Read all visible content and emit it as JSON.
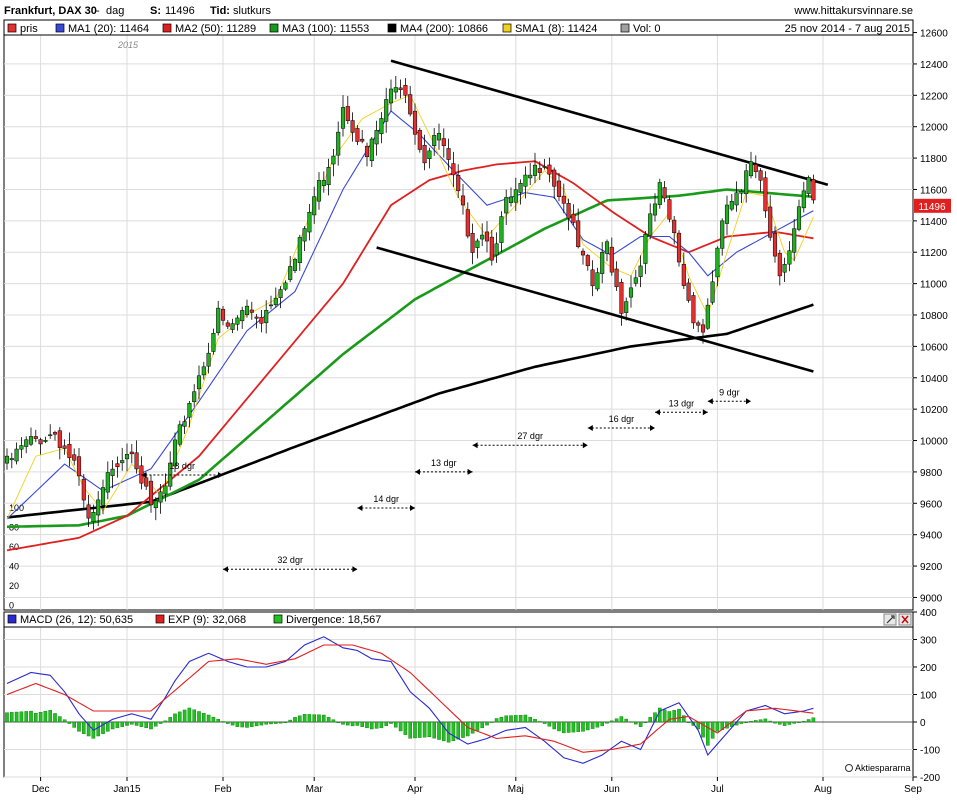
{
  "header": {
    "title": "Frankfurt, DAX 30",
    "sep": "-",
    "interval": "dag",
    "last_label": "S:",
    "last_value": "11496",
    "type_label": "Tid:",
    "type_value": "slutkurs",
    "site": "www.hittakursvinnare.se",
    "date_range": "25 nov 2014 - 7 aug 2015",
    "year_label": "2015"
  },
  "legend": [
    {
      "label": "pris",
      "color": "#e53030"
    },
    {
      "label": "MA1 (20): 11464",
      "color": "#3a48d6"
    },
    {
      "label": "MA2 (50): 11289",
      "color": "#e02020"
    },
    {
      "label": "MA3 (100): 11553",
      "color": "#1a9a1a"
    },
    {
      "label": "MA4 (200): 10866",
      "color": "#000000"
    },
    {
      "label": "SMA1 (8): 11424",
      "color": "#f0d020"
    },
    {
      "label": "Vol: 0",
      "color": "#a0a0a0"
    }
  ],
  "macd_legend": [
    {
      "label": "MACD (26, 12): 50,635",
      "color": "#2a2ad0"
    },
    {
      "label": "EXP (9): 32,068",
      "color": "#e02020"
    },
    {
      "label": "Divergence: 18,567",
      "color": "#22c022"
    }
  ],
  "price_marker": "11496",
  "watermark": "Aktiespararna",
  "colors": {
    "up": "#22b022",
    "down": "#e03030",
    "ma20": "#3a48d6",
    "ma50": "#e02020",
    "ma100": "#1a9a1a",
    "ma200": "#000000",
    "sma8": "#f0d020",
    "macd": "#2a2ad0",
    "exp": "#e02020",
    "div": "#22c022"
  },
  "chart_data": [
    {
      "type": "candlestick",
      "title": "Frankfurt, DAX 30",
      "y_ticks": [
        9000,
        9200,
        9400,
        9600,
        9800,
        10000,
        10200,
        10400,
        10600,
        10800,
        11000,
        11200,
        11400,
        11600,
        11800,
        12000,
        12200,
        12400,
        12600
      ],
      "ylim": [
        8920,
        12680
      ],
      "x_labels": [
        "Dec",
        "Jan15",
        "Feb",
        "Mar",
        "Apr",
        "Maj",
        "Jun",
        "Jul",
        "Aug",
        "Sep"
      ],
      "volume_ticks": [
        "100",
        "80",
        "60",
        "40",
        "20",
        "0"
      ],
      "close_waypoints": [
        [
          0,
          9850
        ],
        [
          4,
          9980
        ],
        [
          10,
          10050
        ],
        [
          14,
          9850
        ],
        [
          17,
          9470
        ],
        [
          19,
          9580
        ],
        [
          22,
          9850
        ],
        [
          26,
          9970
        ],
        [
          30,
          9550
        ],
        [
          33,
          9700
        ],
        [
          35,
          9950
        ],
        [
          38,
          10250
        ],
        [
          41,
          10500
        ],
        [
          44,
          10800
        ],
        [
          46,
          10700
        ],
        [
          50,
          10850
        ],
        [
          53,
          10780
        ],
        [
          56,
          10950
        ],
        [
          60,
          11150
        ],
        [
          64,
          11550
        ],
        [
          68,
          11850
        ],
        [
          70,
          12150
        ],
        [
          73,
          11950
        ],
        [
          75,
          11800
        ],
        [
          78,
          12050
        ],
        [
          81,
          12300
        ],
        [
          83,
          12250
        ],
        [
          85,
          11980
        ],
        [
          87,
          11800
        ],
        [
          90,
          11950
        ],
        [
          93,
          11650
        ],
        [
          95,
          11450
        ],
        [
          97,
          11250
        ],
        [
          99,
          11350
        ],
        [
          101,
          11200
        ],
        [
          104,
          11500
        ],
        [
          107,
          11600
        ],
        [
          110,
          11720
        ],
        [
          112,
          11800
        ],
        [
          114,
          11650
        ],
        [
          117,
          11450
        ],
        [
          119,
          11220
        ],
        [
          122,
          10980
        ],
        [
          125,
          11250
        ],
        [
          128,
          10850
        ],
        [
          131,
          11050
        ],
        [
          134,
          11400
        ],
        [
          136,
          11600
        ],
        [
          139,
          11300
        ],
        [
          141,
          11000
        ],
        [
          143,
          10800
        ],
        [
          145,
          10700
        ],
        [
          148,
          11200
        ],
        [
          150,
          11500
        ],
        [
          153,
          11560
        ],
        [
          155,
          11780
        ],
        [
          157,
          11700
        ],
        [
          159,
          11300
        ],
        [
          161,
          11100
        ],
        [
          163,
          11200
        ],
        [
          165,
          11450
        ],
        [
          167,
          11650
        ],
        [
          168,
          11496
        ]
      ],
      "series": [
        {
          "name": "MA4 (200)",
          "waypoints": [
            [
              0,
              9510
            ],
            [
              30,
              9610
            ],
            [
              60,
              9960
            ],
            [
              90,
              10300
            ],
            [
              110,
              10470
            ],
            [
              130,
              10600
            ],
            [
              150,
              10680
            ],
            [
              168,
              10866
            ]
          ]
        },
        {
          "name": "MA3 (100)",
          "waypoints": [
            [
              0,
              9450
            ],
            [
              15,
              9460
            ],
            [
              25,
              9520
            ],
            [
              40,
              9750
            ],
            [
              55,
              10150
            ],
            [
              70,
              10550
            ],
            [
              85,
              10900
            ],
            [
              100,
              11150
            ],
            [
              112,
              11350
            ],
            [
              125,
              11530
            ],
            [
              140,
              11560
            ],
            [
              150,
              11600
            ],
            [
              168,
              11553
            ]
          ]
        },
        {
          "name": "MA2 (50)",
          "waypoints": [
            [
              0,
              9300
            ],
            [
              15,
              9380
            ],
            [
              25,
              9520
            ],
            [
              40,
              9900
            ],
            [
              55,
              10450
            ],
            [
              70,
              11000
            ],
            [
              80,
              11500
            ],
            [
              88,
              11660
            ],
            [
              95,
              11720
            ],
            [
              102,
              11760
            ],
            [
              110,
              11780
            ],
            [
              118,
              11640
            ],
            [
              126,
              11460
            ],
            [
              134,
              11300
            ],
            [
              142,
              11200
            ],
            [
              150,
              11300
            ],
            [
              160,
              11330
            ],
            [
              168,
              11289
            ]
          ]
        },
        {
          "name": "MA1 (20)",
          "waypoints": [
            [
              0,
              9500
            ],
            [
              12,
              9850
            ],
            [
              20,
              9680
            ],
            [
              30,
              9820
            ],
            [
              40,
              10250
            ],
            [
              50,
              10700
            ],
            [
              60,
              10950
            ],
            [
              70,
              11600
            ],
            [
              80,
              12100
            ],
            [
              86,
              11950
            ],
            [
              93,
              11720
            ],
            [
              100,
              11500
            ],
            [
              108,
              11580
            ],
            [
              114,
              11550
            ],
            [
              120,
              11280
            ],
            [
              126,
              11180
            ],
            [
              132,
              11300
            ],
            [
              138,
              11300
            ],
            [
              142,
              11200
            ],
            [
              146,
              11050
            ],
            [
              152,
              11200
            ],
            [
              158,
              11300
            ],
            [
              164,
              11400
            ],
            [
              168,
              11464
            ]
          ]
        },
        {
          "name": "SMA1 (8)",
          "waypoints": [
            [
              0,
              9500
            ],
            [
              6,
              9900
            ],
            [
              12,
              9950
            ],
            [
              16,
              9700
            ],
            [
              20,
              9550
            ],
            [
              26,
              9850
            ],
            [
              32,
              9650
            ],
            [
              38,
              10100
            ],
            [
              44,
              10650
            ],
            [
              50,
              10800
            ],
            [
              56,
              10900
            ],
            [
              62,
              11350
            ],
            [
              68,
              11800
            ],
            [
              74,
              12050
            ],
            [
              80,
              12150
            ],
            [
              84,
              12200
            ],
            [
              88,
              11950
            ],
            [
              94,
              11550
            ],
            [
              100,
              11300
            ],
            [
              106,
              11500
            ],
            [
              112,
              11720
            ],
            [
              116,
              11600
            ],
            [
              120,
              11250
            ],
            [
              126,
              11100
            ],
            [
              130,
              11050
            ],
            [
              134,
              11300
            ],
            [
              138,
              11450
            ],
            [
              142,
              11050
            ],
            [
              146,
              10800
            ],
            [
              150,
              11200
            ],
            [
              154,
              11580
            ],
            [
              158,
              11560
            ],
            [
              162,
              11200
            ],
            [
              164,
              11150
            ],
            [
              168,
              11424
            ]
          ]
        }
      ],
      "trendlines": [
        {
          "from": [
            80,
            12420
          ],
          "to": [
            171,
            11630
          ]
        },
        {
          "from": [
            77,
            11230
          ],
          "to": [
            168,
            10440
          ]
        }
      ],
      "annotations": [
        {
          "text": "18 dgr",
          "from": 28,
          "to": 45,
          "y": 9780
        },
        {
          "text": "32 dgr",
          "from": 45,
          "to": 73,
          "y": 9180
        },
        {
          "text": "14 dgr",
          "from": 73,
          "to": 85,
          "y": 9570
        },
        {
          "text": "13 dgr",
          "from": 85,
          "to": 97,
          "y": 9800
        },
        {
          "text": "27 dgr",
          "from": 97,
          "to": 121,
          "y": 9970
        },
        {
          "text": "16 dgr",
          "from": 121,
          "to": 135,
          "y": 10080
        },
        {
          "text": "13 dgr",
          "from": 135,
          "to": 146,
          "y": 10180
        },
        {
          "text": "9 dgr",
          "from": 146,
          "to": 155,
          "y": 10250
        }
      ]
    },
    {
      "type": "line",
      "title": "MACD (26, 12)",
      "y_ticks": [
        -200,
        -100,
        0,
        100,
        200,
        300,
        400
      ],
      "ylim": [
        -200,
        400
      ],
      "series": [
        {
          "name": "MACD (26, 12)",
          "waypoints": [
            [
              0,
              140
            ],
            [
              5,
              180
            ],
            [
              9,
              170
            ],
            [
              12,
              110
            ],
            [
              15,
              30
            ],
            [
              18,
              -30
            ],
            [
              22,
              10
            ],
            [
              26,
              30
            ],
            [
              30,
              10
            ],
            [
              33,
              90
            ],
            [
              35,
              150
            ],
            [
              38,
              220
            ],
            [
              42,
              250
            ],
            [
              46,
              220
            ],
            [
              50,
              200
            ],
            [
              54,
              200
            ],
            [
              58,
              220
            ],
            [
              62,
              280
            ],
            [
              66,
              310
            ],
            [
              70,
              270
            ],
            [
              73,
              260
            ],
            [
              76,
              230
            ],
            [
              80,
              220
            ],
            [
              84,
              110
            ],
            [
              88,
              50
            ],
            [
              92,
              -40
            ],
            [
              96,
              -80
            ],
            [
              100,
              -60
            ],
            [
              104,
              -30
            ],
            [
              108,
              -20
            ],
            [
              112,
              -70
            ],
            [
              116,
              -130
            ],
            [
              120,
              -150
            ],
            [
              124,
              -120
            ],
            [
              128,
              -70
            ],
            [
              132,
              -100
            ],
            [
              136,
              40
            ],
            [
              140,
              70
            ],
            [
              144,
              -30
            ],
            [
              146,
              -120
            ],
            [
              150,
              -40
            ],
            [
              154,
              40
            ],
            [
              158,
              60
            ],
            [
              162,
              30
            ],
            [
              166,
              40
            ],
            [
              168,
              50
            ]
          ]
        },
        {
          "name": "EXP (9)",
          "waypoints": [
            [
              0,
              100
            ],
            [
              6,
              140
            ],
            [
              12,
              100
            ],
            [
              18,
              40
            ],
            [
              24,
              40
            ],
            [
              30,
              40
            ],
            [
              36,
              130
            ],
            [
              42,
              220
            ],
            [
              48,
              230
            ],
            [
              54,
              210
            ],
            [
              60,
              230
            ],
            [
              66,
              280
            ],
            [
              72,
              280
            ],
            [
              78,
              250
            ],
            [
              84,
              180
            ],
            [
              90,
              80
            ],
            [
              96,
              -20
            ],
            [
              102,
              -60
            ],
            [
              108,
              -50
            ],
            [
              114,
              -70
            ],
            [
              120,
              -110
            ],
            [
              126,
              -100
            ],
            [
              132,
              -80
            ],
            [
              138,
              10
            ],
            [
              142,
              20
            ],
            [
              148,
              -40
            ],
            [
              154,
              40
            ],
            [
              160,
              50
            ],
            [
              168,
              32
            ]
          ]
        }
      ]
    }
  ]
}
